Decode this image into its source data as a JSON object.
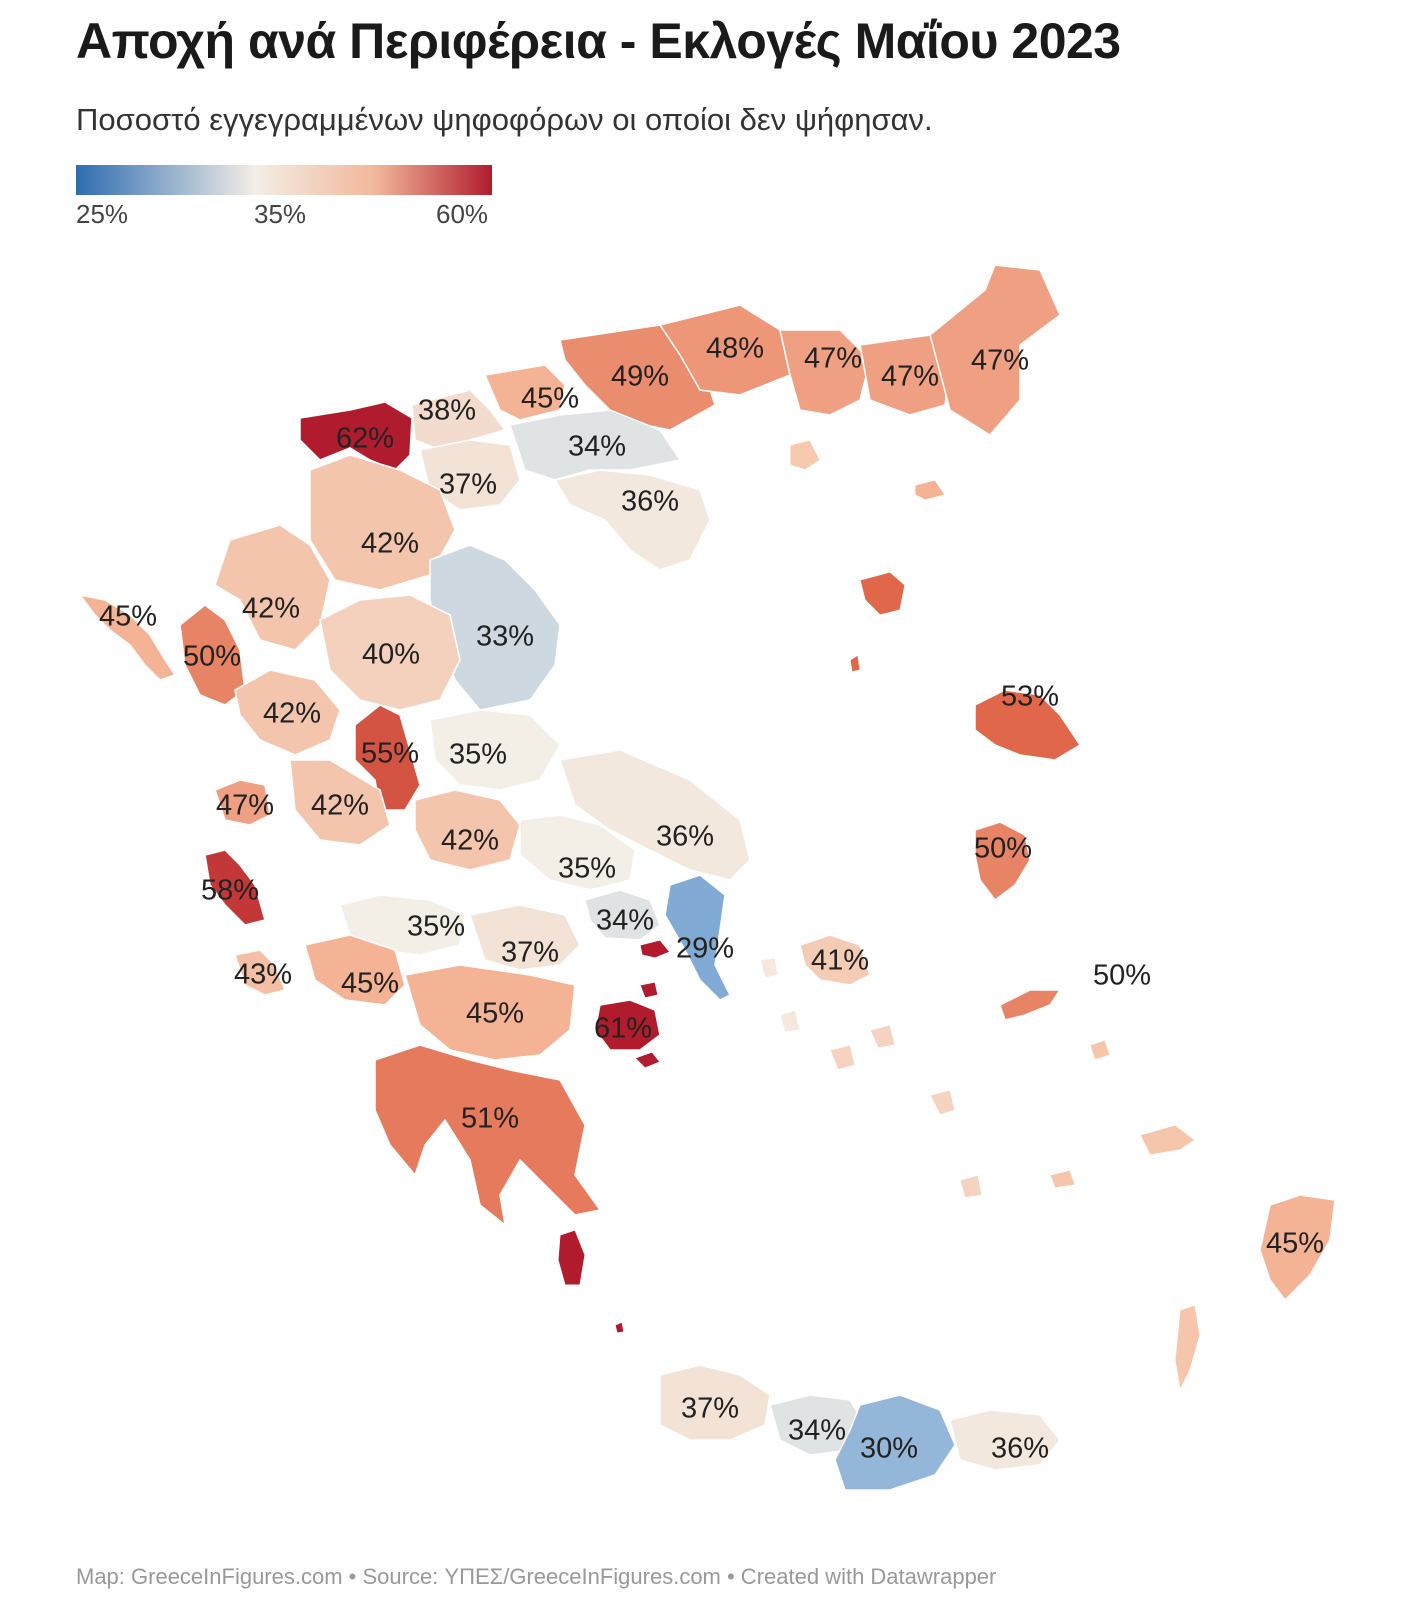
{
  "title": "Αποχή ανά Περιφέρεια - Εκλογές Μαΐου 2023",
  "subtitle": "Ποσοστό εγγεγραμμένων ψηφοφόρων οι οποίοι δεν ψήφησαν.",
  "legend": {
    "ticks": [
      "25%",
      "35%",
      "60%"
    ],
    "colors": [
      "#2f6cb0",
      "#f3eee6",
      "#b01c2e"
    ]
  },
  "footer": "Map: GreeceInFigures.com • Source: ΥΠΕΣ/GreeceInFigures.com • Created with Datawrapper",
  "regions": [
    {
      "label": "62%",
      "value": 62
    },
    {
      "label": "38%",
      "value": 38
    },
    {
      "label": "45%",
      "value": 45
    },
    {
      "label": "49%",
      "value": 49
    },
    {
      "label": "48%",
      "value": 48
    },
    {
      "label": "47%",
      "value": 47
    },
    {
      "label": "47%",
      "value": 47
    },
    {
      "label": "47%",
      "value": 47
    },
    {
      "label": "34%",
      "value": 34
    },
    {
      "label": "37%",
      "value": 37
    },
    {
      "label": "36%",
      "value": 36
    },
    {
      "label": "42%",
      "value": 42
    },
    {
      "label": "45%",
      "value": 45
    },
    {
      "label": "42%",
      "value": 42
    },
    {
      "label": "33%",
      "value": 33
    },
    {
      "label": "50%",
      "value": 50
    },
    {
      "label": "40%",
      "value": 40
    },
    {
      "label": "53%",
      "value": 53
    },
    {
      "label": "42%",
      "value": 42
    },
    {
      "label": "55%",
      "value": 55
    },
    {
      "label": "35%",
      "value": 35
    },
    {
      "label": "47%",
      "value": 47
    },
    {
      "label": "42%",
      "value": 42
    },
    {
      "label": "42%",
      "value": 42
    },
    {
      "label": "36%",
      "value": 36
    },
    {
      "label": "50%",
      "value": 50
    },
    {
      "label": "35%",
      "value": 35
    },
    {
      "label": "58%",
      "value": 58
    },
    {
      "label": "34%",
      "value": 34
    },
    {
      "label": "35%",
      "value": 35
    },
    {
      "label": "29%",
      "value": 29
    },
    {
      "label": "37%",
      "value": 37
    },
    {
      "label": "41%",
      "value": 41
    },
    {
      "label": "43%",
      "value": 43
    },
    {
      "label": "45%",
      "value": 45
    },
    {
      "label": "50%",
      "value": 50
    },
    {
      "label": "45%",
      "value": 45
    },
    {
      "label": "61%",
      "value": 61
    },
    {
      "label": "51%",
      "value": 51
    },
    {
      "label": "45%",
      "value": 45
    },
    {
      "label": "37%",
      "value": 37
    },
    {
      "label": "34%",
      "value": 34
    },
    {
      "label": "30%",
      "value": 30
    },
    {
      "label": "36%",
      "value": 36
    }
  ]
}
